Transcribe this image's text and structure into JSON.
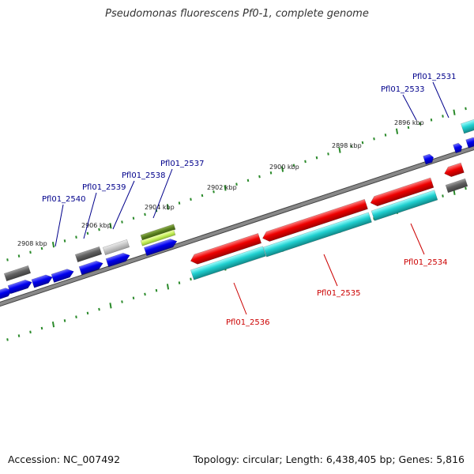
{
  "title": "Pseudomonas fluorescens Pf0-1, complete genome",
  "accession": "Accession: NC_007492",
  "summary": "Topology: circular; Length: 6,438,405 bp; Genes: 5,816",
  "colors": {
    "gene_forward": "#0000ee",
    "gene_reverse": "#ee0000",
    "genome_line": "#888888",
    "tick": "#2a8a2a",
    "label_forward": "#00008b",
    "label_reverse": "#cc0000"
  },
  "ticks": [
    {
      "label": "2896 kbp"
    },
    {
      "label": "2898 kbp"
    },
    {
      "label": "2900 kbp"
    },
    {
      "label": "2902 kbp"
    },
    {
      "label": "2904 kbp"
    },
    {
      "label": "2906 kbp"
    },
    {
      "label": "2908 kbp"
    }
  ],
  "gene_labels": [
    {
      "label": "Pfl01_2531",
      "strand": "forward"
    },
    {
      "label": "Pfl01_2533",
      "strand": "forward"
    },
    {
      "label": "Pfl01_2537",
      "strand": "forward"
    },
    {
      "label": "Pfl01_2538",
      "strand": "forward"
    },
    {
      "label": "Pfl01_2539",
      "strand": "forward"
    },
    {
      "label": "Pfl01_2540",
      "strand": "forward"
    },
    {
      "label": "Pfl01_2534",
      "strand": "reverse"
    },
    {
      "label": "Pfl01_2535",
      "strand": "reverse"
    },
    {
      "label": "Pfl01_2536",
      "strand": "reverse"
    }
  ]
}
